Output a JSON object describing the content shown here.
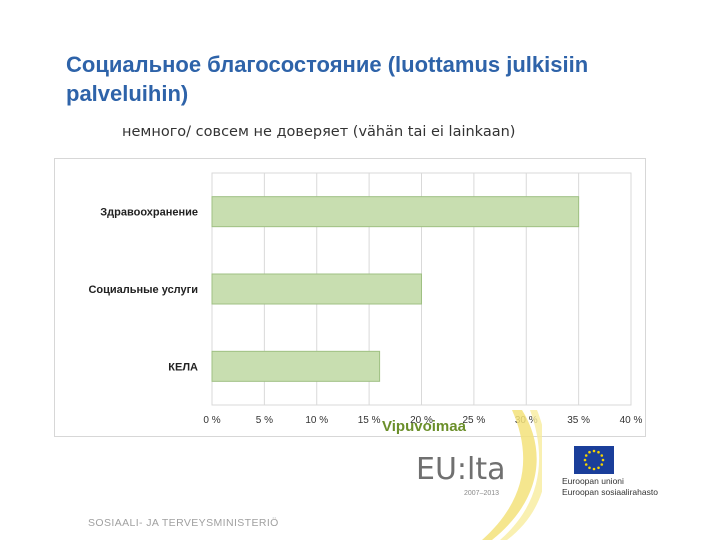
{
  "slide": {
    "title": "Социальное благосостояние (luottamus julkisiin palveluihin)",
    "subtitle": "немного/ совсем не доверяет (vähän tai ei lainkaan)",
    "footer": "SOSIAALI- JA TERVEYSMINISTERIÖ"
  },
  "logos": {
    "vipuvoimaa": "Vipuvoimaa",
    "eu_lta": "EU:lta",
    "years": "2007–2013",
    "eu_union": "Euroopan unioni",
    "eu_fund": "Euroopan sosiaalirahasto",
    "eu_flag_icon": "eu-flag-icon"
  },
  "colors": {
    "title": "#2e63a9",
    "bar_fill": "#c8deb0",
    "bar_stroke": "#9fc083",
    "grid": "#d9d9d9",
    "eu_blue": "#1a3e9a",
    "eu_gold": "#f5d300",
    "vip_green": "#6b8f2a",
    "vip_yellow": "#f3e27a"
  },
  "chart_data": {
    "type": "bar",
    "orientation": "horizontal",
    "categories": [
      "Здравоохранение",
      "Социальные услуги",
      "КЕЛА"
    ],
    "values": [
      35,
      20,
      16
    ],
    "xlim": [
      0,
      40
    ],
    "xticks": [
      "0 %",
      "5 %",
      "10 %",
      "15 %",
      "20 %",
      "25 %",
      "30 %",
      "35 %",
      "40 %"
    ],
    "grid": "vertical",
    "legend": "none"
  }
}
